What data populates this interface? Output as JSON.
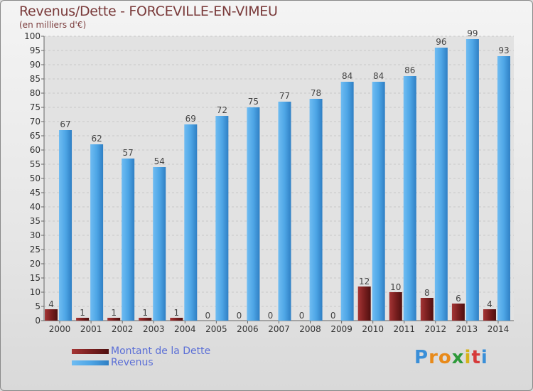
{
  "title": "Revenus/Dette - FORCEVILLE-EN-VIMEU",
  "subtitle": "(en milliers d'€)",
  "chart_data": {
    "type": "bar",
    "categories": [
      "2000",
      "2001",
      "2002",
      "2003",
      "2004",
      "2005",
      "2006",
      "2007",
      "2008",
      "2009",
      "2010",
      "2011",
      "2012",
      "2013",
      "2014"
    ],
    "series": [
      {
        "name": "Montant de la Dette",
        "values": [
          4,
          1,
          1,
          1,
          1,
          0,
          0,
          0,
          0,
          0,
          12,
          10,
          8,
          6,
          4
        ],
        "color": "#7a1f1f"
      },
      {
        "name": "Revenus",
        "values": [
          67,
          62,
          57,
          54,
          69,
          72,
          75,
          77,
          78,
          84,
          84,
          86,
          96,
          99,
          93
        ],
        "color": "#4ea6e6"
      }
    ],
    "ylim": [
      0,
      100
    ],
    "yticks": [
      0,
      5,
      10,
      15,
      20,
      25,
      30,
      35,
      40,
      45,
      50,
      55,
      60,
      65,
      70,
      75,
      80,
      85,
      90,
      95,
      100
    ],
    "grid": true,
    "legend": "bottom-left"
  },
  "legend": {
    "items": [
      {
        "label": "Montant de la Dette",
        "color": "#7a1f1f"
      },
      {
        "label": "Revenus",
        "color": "#4ea6e6"
      }
    ]
  },
  "brand": {
    "letters": [
      "P",
      "r",
      "o",
      "x",
      "i",
      "t",
      "i"
    ],
    "colors": [
      "#3a8fd8",
      "#e88a1a",
      "#e88a1a",
      "#2e9a3a",
      "#d6b21a",
      "#d63a3a",
      "#3a8fd8"
    ]
  }
}
